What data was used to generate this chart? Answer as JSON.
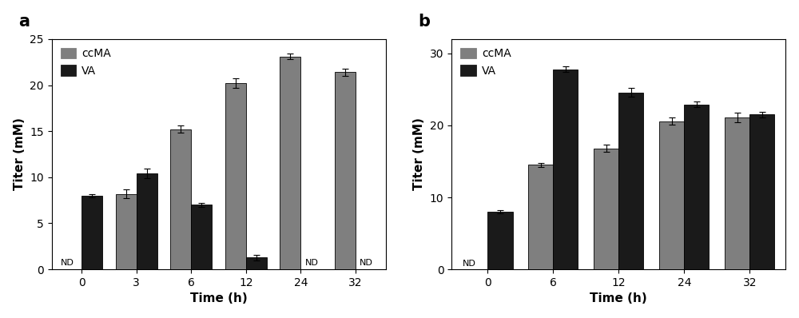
{
  "panel_a": {
    "time_points": [
      0,
      3,
      6,
      12,
      24,
      32
    ],
    "ccMA_values": [
      0,
      8.2,
      15.2,
      20.2,
      23.1,
      21.4
    ],
    "ccMA_errors": [
      0,
      0.5,
      0.4,
      0.5,
      0.3,
      0.4
    ],
    "VA_values": [
      8.0,
      10.4,
      7.0,
      1.3,
      0,
      0
    ],
    "VA_errors": [
      0.2,
      0.5,
      0.2,
      0.3,
      0,
      0
    ],
    "ccMA_nd_indices": [
      0
    ],
    "VA_nd_indices": [
      4,
      5
    ],
    "ylim": [
      0,
      25
    ],
    "yticks": [
      0,
      5,
      10,
      15,
      20,
      25
    ],
    "ylabel": "Titer (mM)",
    "xlabel": "Time (h)",
    "panel_label": "a",
    "bar_width": 0.38
  },
  "panel_b": {
    "time_points": [
      0,
      6,
      12,
      24,
      32
    ],
    "ccMA_values": [
      0,
      14.5,
      16.8,
      20.6,
      21.1
    ],
    "ccMA_errors": [
      0,
      0.3,
      0.5,
      0.5,
      0.7
    ],
    "VA_values": [
      8.0,
      27.8,
      24.6,
      22.9,
      21.5
    ],
    "VA_errors": [
      0.2,
      0.4,
      0.6,
      0.4,
      0.4
    ],
    "ccMA_nd_indices": [
      0
    ],
    "VA_nd_indices": [],
    "ylim": [
      0,
      32
    ],
    "yticks": [
      0,
      10,
      20,
      30
    ],
    "ylabel": "Titer (mM)",
    "xlabel": "Time (h)",
    "panel_label": "b",
    "bar_width": 0.38
  },
  "ccMA_color": "#7f7f7f",
  "VA_color": "#1a1a1a",
  "font_size": 10,
  "label_fontsize": 11,
  "panel_label_fontsize": 15,
  "tick_fontsize": 10,
  "nd_fontsize": 8
}
